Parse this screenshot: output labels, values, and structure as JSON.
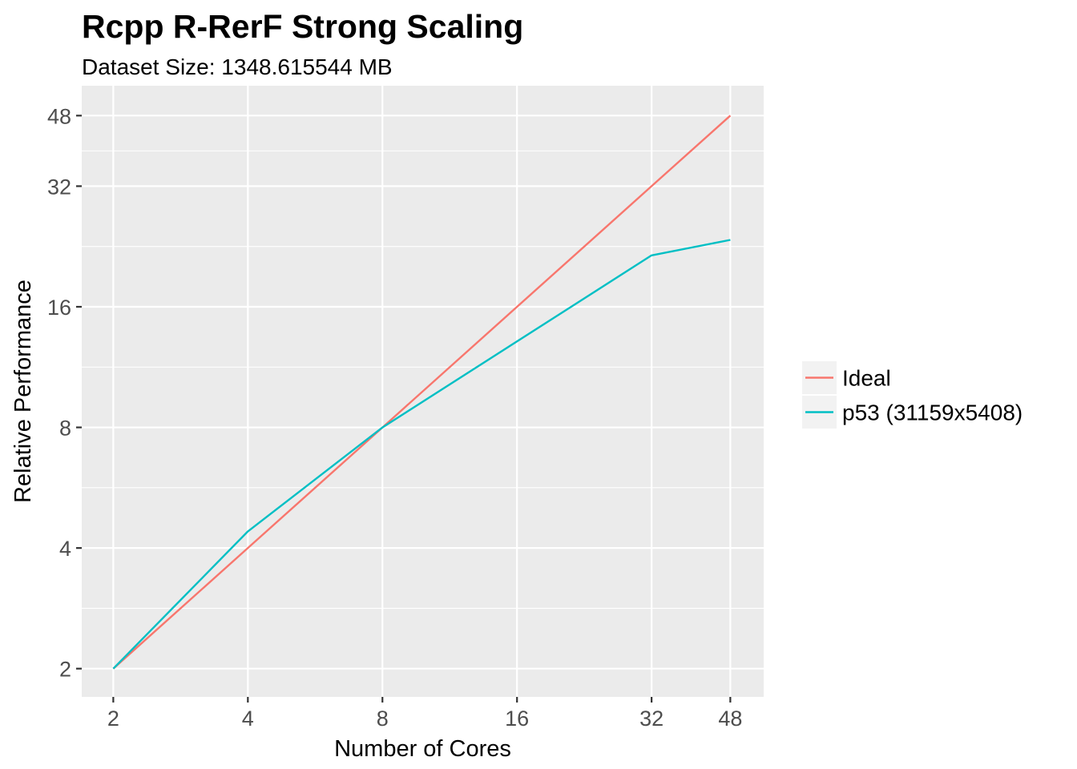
{
  "chart_data": {
    "type": "line",
    "title": "Rcpp R-RerF Strong Scaling",
    "subtitle": "Dataset Size:  1348.615544 MB",
    "xlabel": "Number of Cores",
    "ylabel": "Relative Performance",
    "x_scale": "log2",
    "y_scale": "log2",
    "x": [
      2,
      4,
      8,
      16,
      32,
      48
    ],
    "x_ticks": [
      2,
      4,
      8,
      16,
      32,
      48
    ],
    "y_ticks": [
      2,
      4,
      8,
      16,
      32,
      48
    ],
    "x_tick_labels": [
      "2",
      "4",
      "8",
      "16",
      "32",
      "48"
    ],
    "y_tick_labels": [
      "2",
      "4",
      "8",
      "16",
      "32",
      "48"
    ],
    "xlim": [
      1.7,
      57
    ],
    "ylim": [
      1.7,
      57
    ],
    "grid": true,
    "legend_position": "right",
    "series": [
      {
        "name": "Ideal",
        "color": "#f8766d",
        "values": [
          2,
          4,
          8,
          16,
          32,
          48
        ]
      },
      {
        "name": "p53 (31159x5408)",
        "color": "#00bfc4",
        "x": [
          2,
          4,
          8,
          32,
          48
        ],
        "values": [
          2,
          4.4,
          8,
          21.5,
          23.5
        ]
      }
    ]
  }
}
